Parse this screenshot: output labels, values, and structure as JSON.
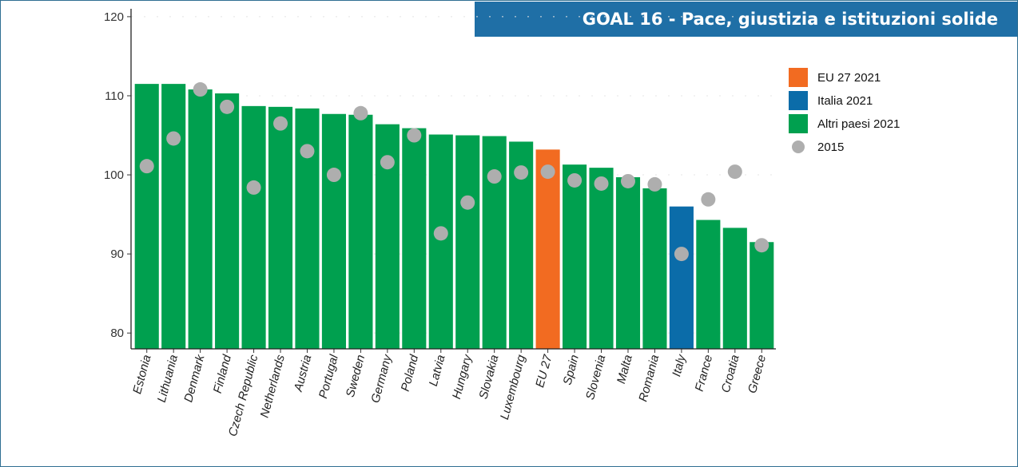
{
  "header": {
    "title": "GOAL 16 - Pace, giustizia e istituzioni solide"
  },
  "colors": {
    "eu": "#f26b21",
    "italy": "#0b6ca9",
    "other": "#00a04f",
    "dot2015": "#aeaeae",
    "banner": "#1f6fa6"
  },
  "chart_data": {
    "type": "bar",
    "title": "",
    "xlabel": "",
    "ylabel": "",
    "ylim": [
      78,
      121
    ],
    "yticks": [
      80,
      90,
      100,
      110,
      120
    ],
    "grid": false,
    "legend_position": "right",
    "legend": [
      {
        "label": "EU 27 2021",
        "kind": "eu"
      },
      {
        "label": "Italia 2021",
        "kind": "italy"
      },
      {
        "label": "Altri paesi 2021",
        "kind": "other"
      },
      {
        "label": "2015",
        "kind": "dot2015"
      }
    ],
    "categories": [
      "Estonia",
      "Lithuania",
      "Denmark",
      "Finland",
      "Czech Republic",
      "Netherlands",
      "Austria",
      "Portugal",
      "Sweden",
      "Germany",
      "Poland",
      "Latvia",
      "Hungary",
      "Slovakia",
      "Luxembourg",
      "EU 27",
      "Spain",
      "Slovenia",
      "Malta",
      "Romania",
      "Italy",
      "France",
      "Croatia",
      "Greece"
    ],
    "kinds": [
      "other",
      "other",
      "other",
      "other",
      "other",
      "other",
      "other",
      "other",
      "other",
      "other",
      "other",
      "other",
      "other",
      "other",
      "other",
      "eu",
      "other",
      "other",
      "other",
      "other",
      "italy",
      "other",
      "other",
      "other"
    ],
    "series": [
      {
        "name": "2021",
        "values": [
          111.5,
          111.5,
          110.8,
          110.3,
          108.7,
          108.6,
          108.4,
          107.7,
          107.6,
          106.4,
          105.9,
          105.1,
          105.0,
          104.9,
          104.2,
          103.2,
          101.3,
          100.9,
          99.7,
          98.3,
          96.0,
          94.3,
          93.3,
          91.5
        ]
      },
      {
        "name": "2015",
        "values": [
          101.1,
          104.6,
          110.8,
          108.6,
          98.4,
          106.5,
          103.0,
          100.0,
          107.8,
          101.6,
          105.0,
          92.6,
          96.5,
          99.8,
          100.3,
          100.4,
          99.3,
          98.9,
          99.2,
          98.8,
          90.0,
          96.9,
          100.4,
          91.1
        ]
      }
    ]
  }
}
